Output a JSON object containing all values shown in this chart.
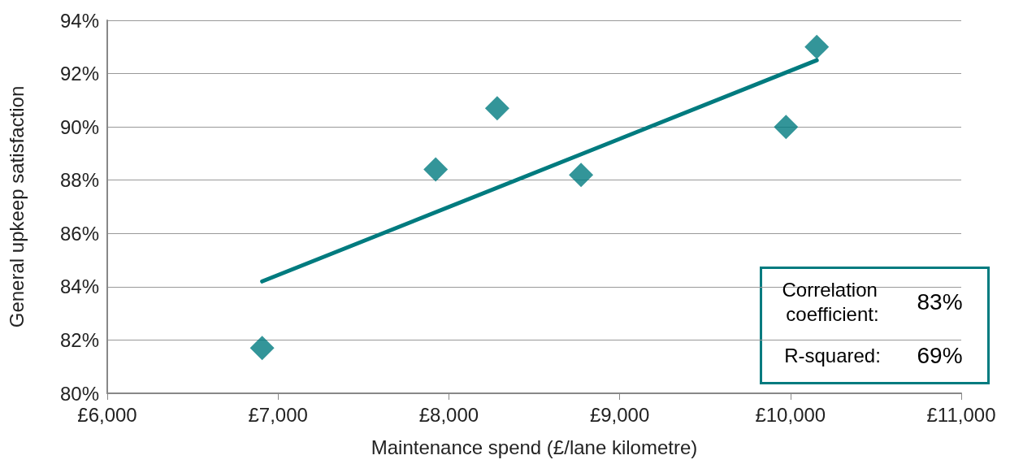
{
  "chart_data": {
    "type": "scatter",
    "xlabel": "Maintenance spend (£/lane kilometre)",
    "ylabel": "General upkeep satisfaction",
    "xlim": [
      6000,
      11000
    ],
    "xticks": [
      {
        "value": 6000,
        "label": "£6,000"
      },
      {
        "value": 7000,
        "label": "£7,000"
      },
      {
        "value": 8000,
        "label": "£8,000"
      },
      {
        "value": 9000,
        "label": "£9,000"
      },
      {
        "value": 10000,
        "label": "£10,000"
      },
      {
        "value": 11000,
        "label": "£11,000"
      }
    ],
    "ylim": [
      80,
      94
    ],
    "yticks": [
      {
        "value": 80,
        "label": "80%"
      },
      {
        "value": 82,
        "label": "82%"
      },
      {
        "value": 84,
        "label": "84%"
      },
      {
        "value": 86,
        "label": "86%"
      },
      {
        "value": 88,
        "label": "88%"
      },
      {
        "value": 90,
        "label": "90%"
      },
      {
        "value": 92,
        "label": "92%"
      },
      {
        "value": 94,
        "label": "94%"
      }
    ],
    "grid": "y",
    "series": [
      {
        "marker": "diamond",
        "color": "#007b7f",
        "x": [
          6907,
          7923,
          8283,
          8774,
          9974,
          10154
        ],
        "values": [
          81.7,
          88.4,
          90.7,
          88.2,
          90.0,
          93.0
        ]
      },
      {
        "type": "line",
        "color": "#007b7f",
        "x": [
          6907,
          10154
        ],
        "values": [
          84.2,
          92.5
        ],
        "line_style": "solid",
        "marker": "none"
      }
    ],
    "annotations": [
      "Correlation coefficient:",
      "83%",
      "R-squared:",
      "69%"
    ]
  }
}
